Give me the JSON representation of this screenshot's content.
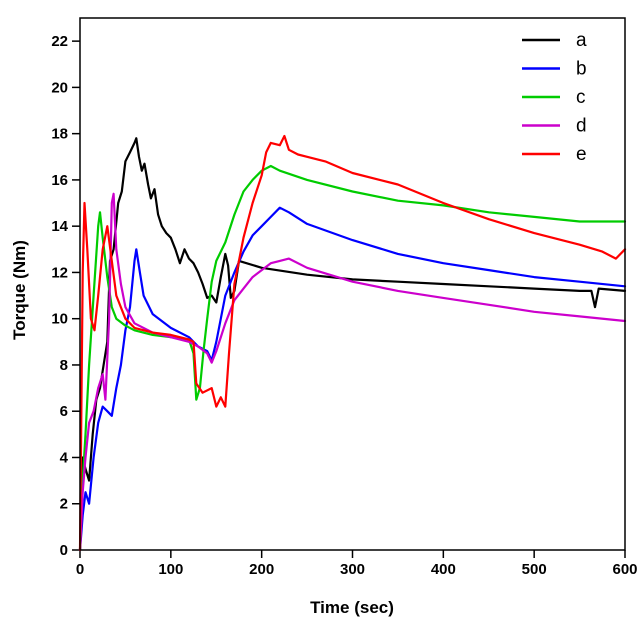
{
  "chart_data": {
    "type": "line",
    "xlabel": "Time (sec)",
    "ylabel": "Torque (Nm)",
    "xlim": [
      0,
      600
    ],
    "ylim": [
      0,
      23
    ],
    "xticks": [
      0,
      100,
      200,
      300,
      400,
      500,
      600
    ],
    "yticks": [
      0,
      2,
      4,
      6,
      8,
      10,
      12,
      14,
      16,
      18,
      20,
      22
    ],
    "grid": false,
    "legend_position": "top-right",
    "series": [
      {
        "name": "a",
        "color": "#000000",
        "points": [
          [
            0,
            0
          ],
          [
            3,
            4
          ],
          [
            6,
            3.5
          ],
          [
            10,
            3
          ],
          [
            14,
            5
          ],
          [
            18,
            6.5
          ],
          [
            22,
            7
          ],
          [
            26,
            8
          ],
          [
            30,
            9
          ],
          [
            33,
            12.5
          ],
          [
            37,
            13
          ],
          [
            42,
            15
          ],
          [
            46,
            15.5
          ],
          [
            50,
            16.8
          ],
          [
            55,
            17.2
          ],
          [
            60,
            17.6
          ],
          [
            62,
            17.8
          ],
          [
            65,
            17
          ],
          [
            68,
            16.4
          ],
          [
            71,
            16.7
          ],
          [
            75,
            15.8
          ],
          [
            78,
            15.2
          ],
          [
            82,
            15.6
          ],
          [
            86,
            14.5
          ],
          [
            90,
            14
          ],
          [
            95,
            13.7
          ],
          [
            100,
            13.5
          ],
          [
            105,
            13
          ],
          [
            110,
            12.4
          ],
          [
            115,
            13
          ],
          [
            120,
            12.6
          ],
          [
            125,
            12.4
          ],
          [
            130,
            12
          ],
          [
            135,
            11.5
          ],
          [
            140,
            10.9
          ],
          [
            145,
            11
          ],
          [
            150,
            10.7
          ],
          [
            155,
            11.8
          ],
          [
            160,
            12.8
          ],
          [
            163,
            12.3
          ],
          [
            166,
            10.9
          ],
          [
            170,
            11.2
          ],
          [
            175,
            12.5
          ],
          [
            200,
            12.2
          ],
          [
            250,
            11.9
          ],
          [
            300,
            11.7
          ],
          [
            350,
            11.6
          ],
          [
            400,
            11.5
          ],
          [
            450,
            11.4
          ],
          [
            500,
            11.3
          ],
          [
            550,
            11.2
          ],
          [
            563,
            11.2
          ],
          [
            567,
            10.5
          ],
          [
            571,
            11.3
          ],
          [
            600,
            11.2
          ]
        ]
      },
      {
        "name": "b",
        "color": "#0000ff",
        "points": [
          [
            0,
            0
          ],
          [
            3,
            1.5
          ],
          [
            6,
            2.5
          ],
          [
            10,
            2
          ],
          [
            15,
            4
          ],
          [
            20,
            5.5
          ],
          [
            25,
            6.2
          ],
          [
            30,
            6
          ],
          [
            35,
            5.8
          ],
          [
            40,
            7
          ],
          [
            45,
            8
          ],
          [
            50,
            9.5
          ],
          [
            55,
            10.5
          ],
          [
            60,
            12.5
          ],
          [
            62,
            13
          ],
          [
            66,
            12
          ],
          [
            70,
            11
          ],
          [
            80,
            10.2
          ],
          [
            100,
            9.6
          ],
          [
            120,
            9.2
          ],
          [
            130,
            8.8
          ],
          [
            140,
            8.6
          ],
          [
            145,
            8.2
          ],
          [
            150,
            9
          ],
          [
            155,
            10
          ],
          [
            160,
            11
          ],
          [
            170,
            12
          ],
          [
            180,
            12.9
          ],
          [
            190,
            13.6
          ],
          [
            200,
            14
          ],
          [
            210,
            14.4
          ],
          [
            220,
            14.8
          ],
          [
            230,
            14.6
          ],
          [
            250,
            14.1
          ],
          [
            300,
            13.4
          ],
          [
            350,
            12.8
          ],
          [
            400,
            12.4
          ],
          [
            450,
            12.1
          ],
          [
            500,
            11.8
          ],
          [
            550,
            11.6
          ],
          [
            600,
            11.4
          ]
        ]
      },
      {
        "name": "c",
        "color": "#00cc00",
        "points": [
          [
            0,
            0
          ],
          [
            3,
            3
          ],
          [
            6,
            5
          ],
          [
            10,
            8
          ],
          [
            15,
            11
          ],
          [
            20,
            14
          ],
          [
            22,
            14.6
          ],
          [
            25,
            13.5
          ],
          [
            30,
            11.8
          ],
          [
            35,
            10.5
          ],
          [
            40,
            10
          ],
          [
            50,
            9.7
          ],
          [
            60,
            9.5
          ],
          [
            80,
            9.3
          ],
          [
            100,
            9.2
          ],
          [
            120,
            9.1
          ],
          [
            125,
            8.5
          ],
          [
            128,
            6.5
          ],
          [
            132,
            7
          ],
          [
            136,
            8.6
          ],
          [
            140,
            10
          ],
          [
            145,
            11.6
          ],
          [
            150,
            12.5
          ],
          [
            160,
            13.3
          ],
          [
            170,
            14.5
          ],
          [
            180,
            15.5
          ],
          [
            190,
            16
          ],
          [
            200,
            16.4
          ],
          [
            210,
            16.6
          ],
          [
            220,
            16.4
          ],
          [
            250,
            16
          ],
          [
            300,
            15.5
          ],
          [
            350,
            15.1
          ],
          [
            400,
            14.9
          ],
          [
            450,
            14.6
          ],
          [
            500,
            14.4
          ],
          [
            550,
            14.2
          ],
          [
            600,
            14.2
          ]
        ]
      },
      {
        "name": "d",
        "color": "#cc00cc",
        "points": [
          [
            0,
            0
          ],
          [
            3,
            2.5
          ],
          [
            6,
            4
          ],
          [
            10,
            5.5
          ],
          [
            15,
            6
          ],
          [
            20,
            7
          ],
          [
            25,
            7.6
          ],
          [
            28,
            6.5
          ],
          [
            32,
            10
          ],
          [
            35,
            15
          ],
          [
            37,
            15.4
          ],
          [
            40,
            13
          ],
          [
            45,
            11.5
          ],
          [
            50,
            10.5
          ],
          [
            60,
            9.8
          ],
          [
            80,
            9.4
          ],
          [
            100,
            9.2
          ],
          [
            120,
            9
          ],
          [
            130,
            8.8
          ],
          [
            140,
            8.5
          ],
          [
            145,
            8.1
          ],
          [
            150,
            8.6
          ],
          [
            160,
            9.8
          ],
          [
            170,
            10.8
          ],
          [
            180,
            11.3
          ],
          [
            190,
            11.8
          ],
          [
            200,
            12.1
          ],
          [
            210,
            12.4
          ],
          [
            220,
            12.5
          ],
          [
            230,
            12.6
          ],
          [
            250,
            12.2
          ],
          [
            300,
            11.6
          ],
          [
            350,
            11.2
          ],
          [
            400,
            10.9
          ],
          [
            450,
            10.6
          ],
          [
            500,
            10.3
          ],
          [
            550,
            10.1
          ],
          [
            600,
            9.9
          ]
        ]
      },
      {
        "name": "e",
        "color": "#ff0000",
        "points": [
          [
            0,
            0
          ],
          [
            3,
            12
          ],
          [
            5,
            15
          ],
          [
            8,
            13
          ],
          [
            12,
            10
          ],
          [
            16,
            9.5
          ],
          [
            20,
            11
          ],
          [
            25,
            13
          ],
          [
            30,
            14
          ],
          [
            35,
            12.5
          ],
          [
            40,
            11
          ],
          [
            50,
            10
          ],
          [
            60,
            9.6
          ],
          [
            80,
            9.4
          ],
          [
            100,
            9.3
          ],
          [
            120,
            9.1
          ],
          [
            125,
            9
          ],
          [
            128,
            7.2
          ],
          [
            135,
            6.8
          ],
          [
            145,
            7
          ],
          [
            150,
            6.2
          ],
          [
            155,
            6.6
          ],
          [
            160,
            6.2
          ],
          [
            164,
            8.5
          ],
          [
            170,
            11.5
          ],
          [
            180,
            13.5
          ],
          [
            190,
            15
          ],
          [
            200,
            16.2
          ],
          [
            205,
            17.2
          ],
          [
            210,
            17.6
          ],
          [
            220,
            17.5
          ],
          [
            225,
            17.9
          ],
          [
            230,
            17.3
          ],
          [
            240,
            17.1
          ],
          [
            250,
            17
          ],
          [
            270,
            16.8
          ],
          [
            300,
            16.3
          ],
          [
            350,
            15.8
          ],
          [
            400,
            15
          ],
          [
            450,
            14.3
          ],
          [
            500,
            13.7
          ],
          [
            550,
            13.2
          ],
          [
            575,
            12.9
          ],
          [
            590,
            12.6
          ],
          [
            600,
            13
          ]
        ]
      }
    ]
  }
}
